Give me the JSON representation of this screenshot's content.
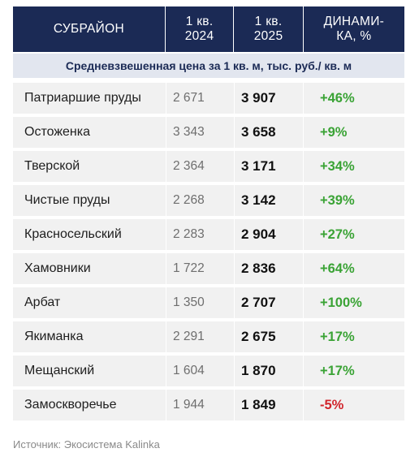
{
  "table": {
    "headers": {
      "district": "СУБРАЙОН",
      "q1_2024": "1 кв.\n2024",
      "q1_2025": "1 кв.\n2025",
      "dynamics": "ДИНАМИ-\nКА, %"
    },
    "subtitle": "Средневзвешенная цена за 1 кв. м, тыс. руб./ кв. м",
    "rows": [
      {
        "name": "Патриаршие пруды",
        "q1_2024": "2 671",
        "q1_2025": "3 907",
        "dynamics": "+46%"
      },
      {
        "name": "Остоженка",
        "q1_2024": "3 343",
        "q1_2025": "3 658",
        "dynamics": "+9%"
      },
      {
        "name": "Тверской",
        "q1_2024": "2 364",
        "q1_2025": "3 171",
        "dynamics": "+34%"
      },
      {
        "name": "Чистые пруды",
        "q1_2024": "2 268",
        "q1_2025": "3 142",
        "dynamics": "+39%"
      },
      {
        "name": "Красносельский",
        "q1_2024": "2 283",
        "q1_2025": "2 904",
        "dynamics": "+27%"
      },
      {
        "name": "Хамовники",
        "q1_2024": "1 722",
        "q1_2025": "2 836",
        "dynamics": "+64%"
      },
      {
        "name": "Арбат",
        "q1_2024": "1 350",
        "q1_2025": "2 707",
        "dynamics": "+100%"
      },
      {
        "name": "Якиманка",
        "q1_2024": "2 291",
        "q1_2025": "2 675",
        "dynamics": "+17%"
      },
      {
        "name": "Мещанский",
        "q1_2024": "1 604",
        "q1_2025": "1 870",
        "dynamics": "+17%"
      },
      {
        "name": "Замоскворечье",
        "q1_2024": "1 944",
        "q1_2025": "1 849",
        "dynamics": "-5%"
      }
    ]
  },
  "source": "Источник: Экосистема Kalinka",
  "colors": {
    "header_bg": "#1b2a55",
    "subtitle_bg": "#e2e6ef",
    "row_bg": "#f1f1f1",
    "positive": "#3aa335",
    "negative": "#d1242b"
  }
}
